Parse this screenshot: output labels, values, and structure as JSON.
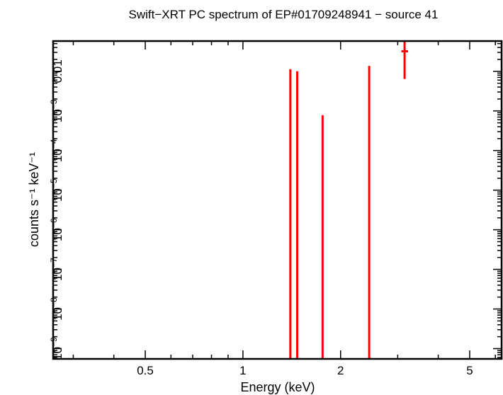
{
  "chart_data": {
    "type": "scatter",
    "title": "Swift−XRT PC spectrum of EP#01709248941 − source 41",
    "xlabel": "Energy (keV)",
    "ylabel": "counts s⁻¹ keV⁻¹",
    "xscale": "log",
    "yscale": "log",
    "xlim": [
      0.26,
      6.27
    ],
    "ylim": [
      5.5e-10,
      0.058
    ],
    "x_ticks": [
      {
        "v": 0.5,
        "label": "0.5"
      },
      {
        "v": 1,
        "label": "1"
      },
      {
        "v": 2,
        "label": "2"
      },
      {
        "v": 5,
        "label": "5"
      }
    ],
    "y_ticks": [
      {
        "v": 0.01,
        "base": "0.01",
        "exp": ""
      },
      {
        "v": 0.001,
        "base": "10",
        "exp": "−3"
      },
      {
        "v": 0.0001,
        "base": "10",
        "exp": "−4"
      },
      {
        "v": 1e-05,
        "base": "10",
        "exp": "−5"
      },
      {
        "v": 1e-06,
        "base": "10",
        "exp": "−6"
      },
      {
        "v": 1e-07,
        "base": "10",
        "exp": "−7"
      },
      {
        "v": 1e-08,
        "base": "10",
        "exp": "−8"
      },
      {
        "v": 1e-09,
        "base": "10",
        "exp": "−9"
      }
    ],
    "series": [
      {
        "color": "#ff0000",
        "points": [
          {
            "x": 1.4,
            "y_upper": 0.0113,
            "y_lower": null
          },
          {
            "x": 1.47,
            "y_upper": 0.01,
            "y_lower": null
          },
          {
            "x": 1.76,
            "y_upper": 0.00078,
            "y_lower": null
          },
          {
            "x": 2.45,
            "y_upper": 0.0137,
            "y_lower": null
          },
          {
            "x": 3.15,
            "y": 0.032,
            "y_upper": 0.058,
            "y_lower": 0.0064,
            "x_low": 3.08,
            "x_high": 3.23
          }
        ]
      }
    ],
    "grid": false
  }
}
